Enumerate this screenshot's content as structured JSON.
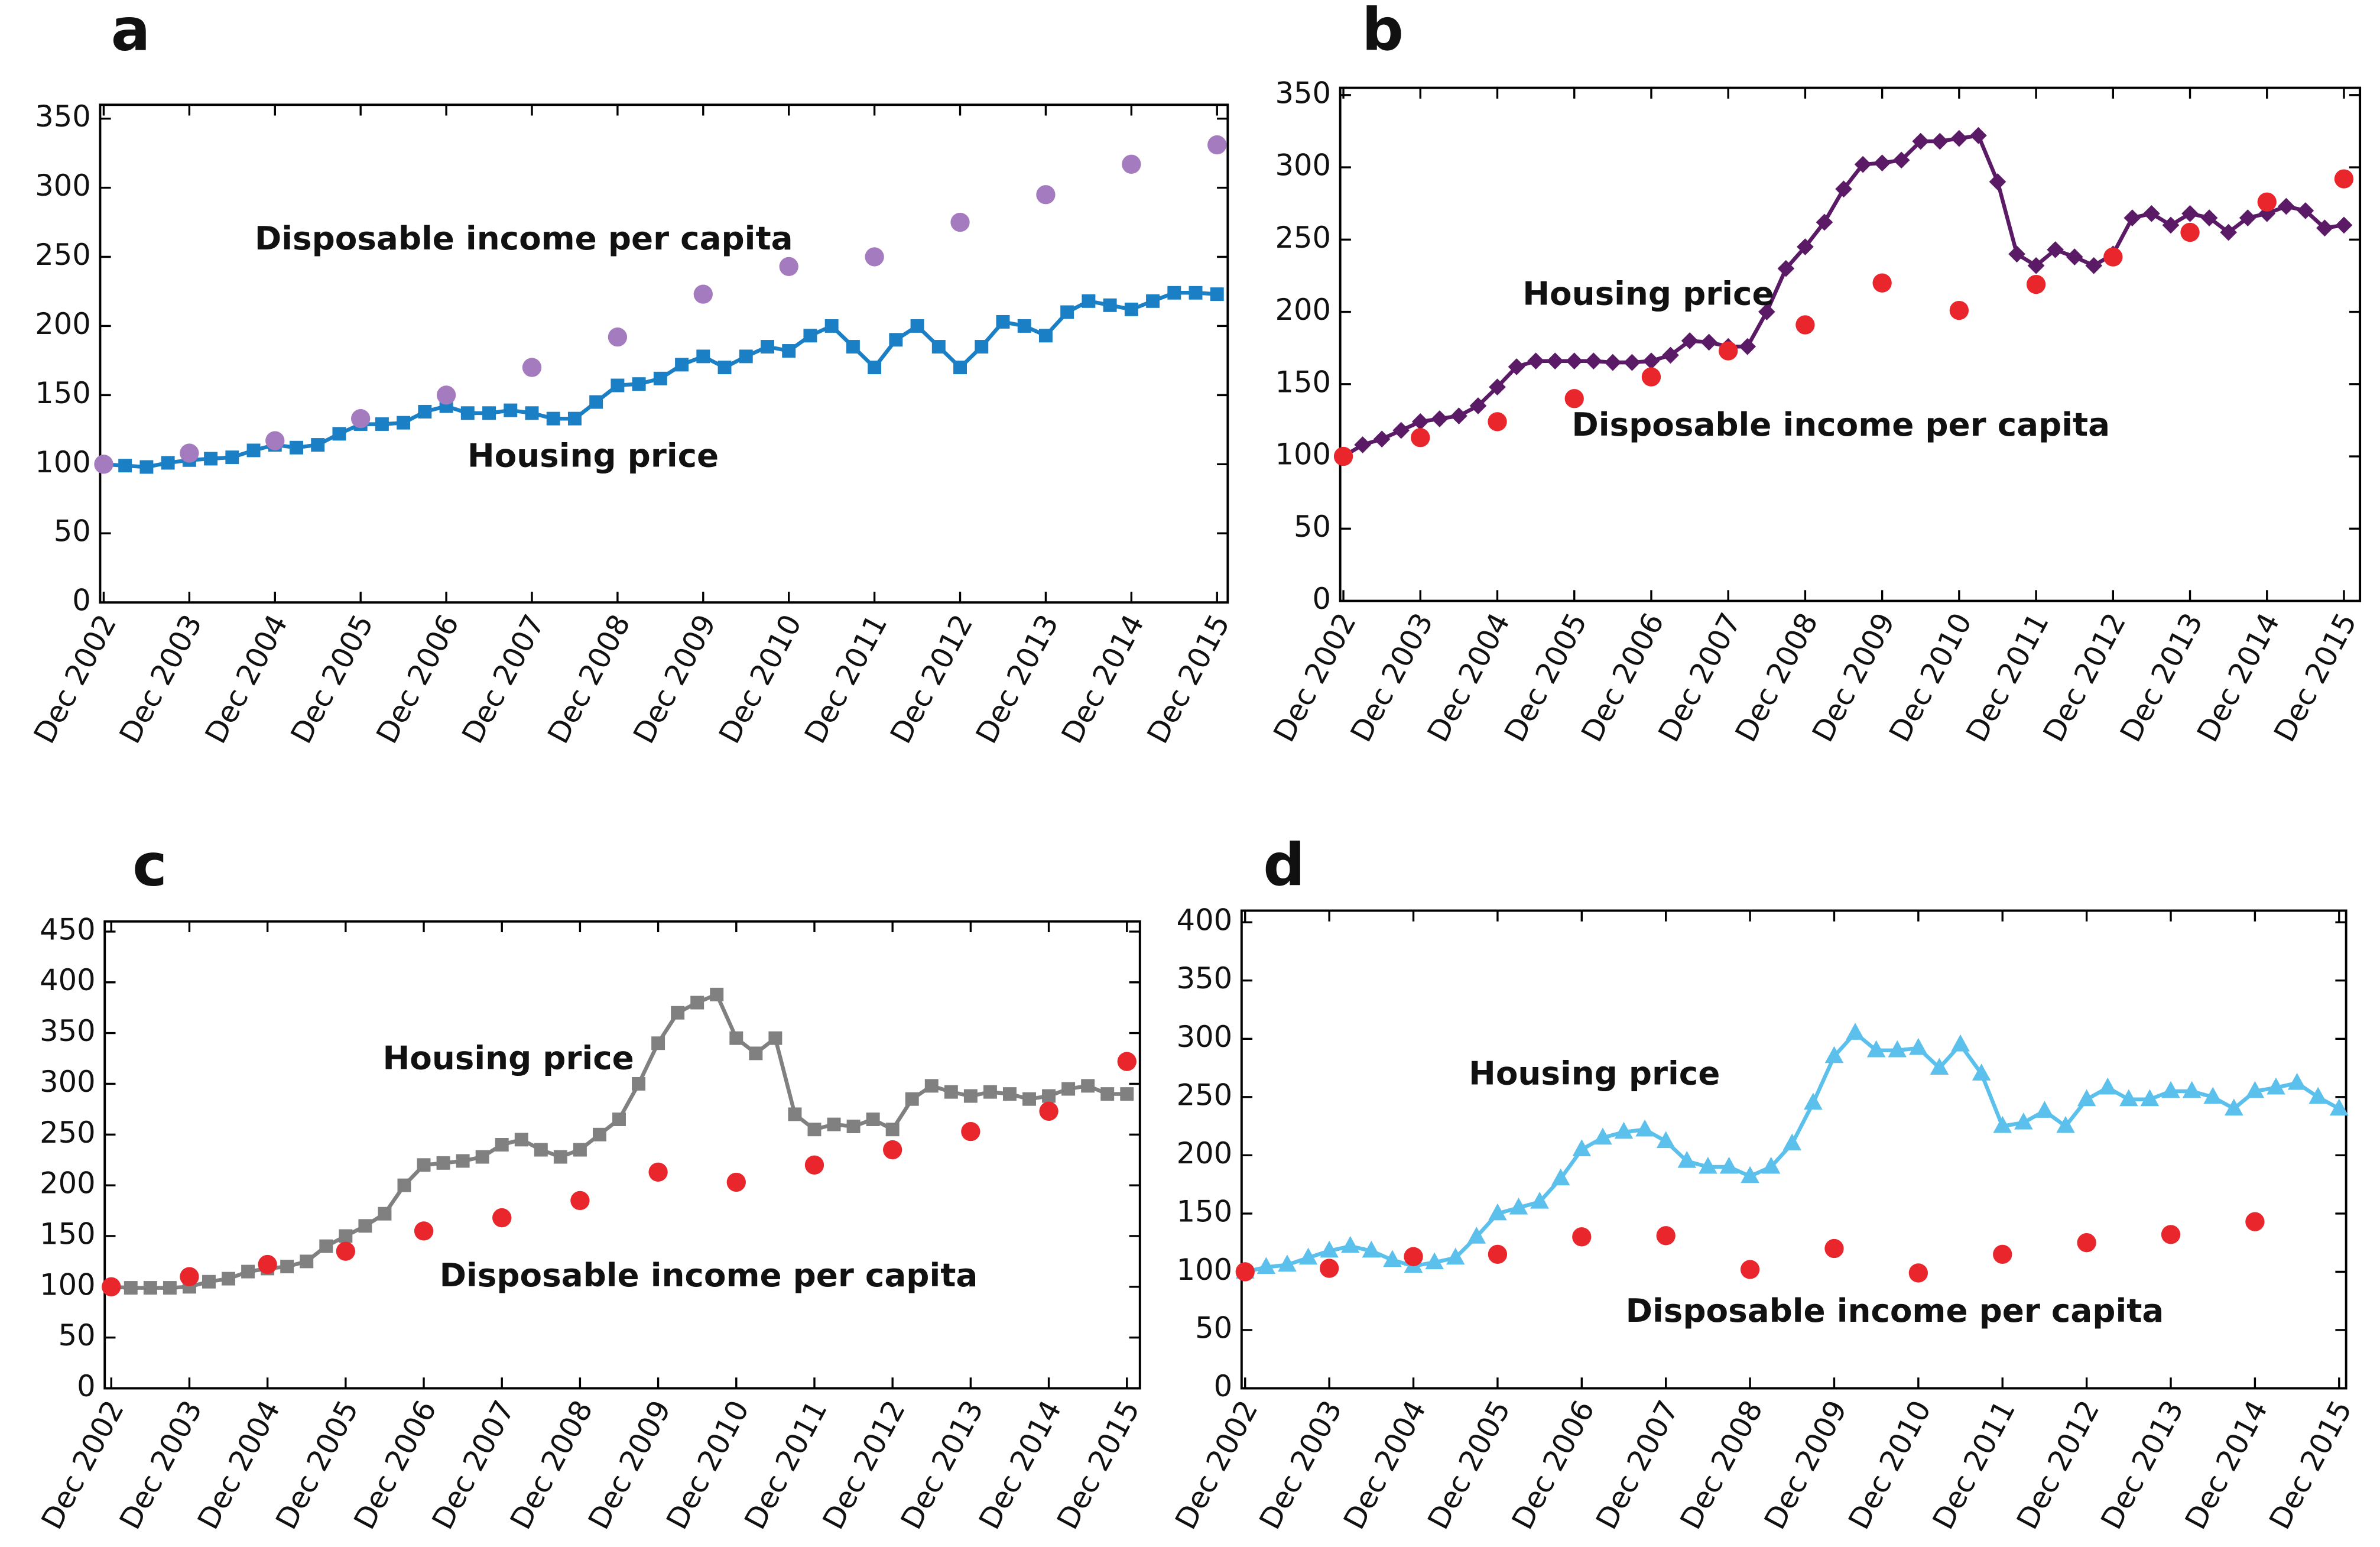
{
  "chart_data": [
    {
      "type": "line",
      "panel": "a",
      "xlim": [
        -0.5,
        157.5
      ],
      "ylim": [
        0,
        360
      ],
      "yticks": [
        0,
        50,
        100,
        150,
        200,
        250,
        300,
        350
      ],
      "xticks": [
        {
          "value": 0,
          "label": "Dec 2002"
        },
        {
          "value": 12,
          "label": "Dec 2003"
        },
        {
          "value": 24,
          "label": "Dec 2004"
        },
        {
          "value": 36,
          "label": "Dec 2005"
        },
        {
          "value": 48,
          "label": "Dec 2006"
        },
        {
          "value": 60,
          "label": "Dec 2007"
        },
        {
          "value": 72,
          "label": "Dec 2008"
        },
        {
          "value": 84,
          "label": "Dec 2009"
        },
        {
          "value": 96,
          "label": "Dec 2010"
        },
        {
          "value": 108,
          "label": "Dec 2011"
        },
        {
          "value": 120,
          "label": "Dec 2012"
        },
        {
          "value": 132,
          "label": "Dec 2013"
        },
        {
          "value": 144,
          "label": "Dec 2014"
        },
        {
          "value": 156,
          "label": "Dec 2015"
        }
      ],
      "series": [
        {
          "name": "Housing price",
          "color": "#1a7fc4",
          "marker": "square",
          "line": true,
          "x": [
            0,
            3,
            6,
            9,
            12,
            15,
            18,
            21,
            24,
            27,
            30,
            33,
            36,
            39,
            42,
            45,
            48,
            51,
            54,
            57,
            60,
            63,
            66,
            69,
            72,
            75,
            78,
            81,
            84,
            87,
            90,
            93,
            96,
            99,
            102,
            105,
            108,
            111,
            114,
            117,
            120,
            123,
            126,
            129,
            132,
            135,
            138,
            141,
            144,
            147,
            150,
            153,
            156
          ],
          "values": [
            100,
            99,
            98,
            101,
            103,
            104,
            105,
            110,
            114,
            112,
            114,
            122,
            129,
            129,
            130,
            138,
            142,
            137,
            137,
            139,
            137,
            133,
            133,
            145,
            157,
            158,
            162,
            172,
            178,
            170,
            178,
            185,
            182,
            193,
            200,
            185,
            170,
            190,
            200,
            185,
            170,
            185,
            203,
            200,
            193,
            210,
            218,
            215,
            212,
            218,
            224,
            224,
            223
          ]
        },
        {
          "name": "Disposable income per capita",
          "color": "#a57bbf",
          "marker": "circle",
          "line": false,
          "x": [
            0,
            12,
            24,
            36,
            48,
            60,
            72,
            84,
            96,
            108,
            120,
            132,
            144,
            156
          ],
          "values": [
            100,
            108,
            117,
            133,
            150,
            170,
            192,
            223,
            243,
            250,
            275,
            295,
            317,
            331
          ]
        }
      ]
    },
    {
      "type": "line",
      "panel": "b",
      "xlim": [
        -0.5,
        158.5
      ],
      "ylim": [
        0,
        355
      ],
      "yticks": [
        0,
        50,
        100,
        150,
        200,
        250,
        300,
        350
      ],
      "xticks": [
        {
          "value": 0,
          "label": "Dec 2002"
        },
        {
          "value": 12,
          "label": "Dec 2003"
        },
        {
          "value": 24,
          "label": "Dec 2004"
        },
        {
          "value": 36,
          "label": "Dec 2005"
        },
        {
          "value": 48,
          "label": "Dec 2006"
        },
        {
          "value": 60,
          "label": "Dec 2007"
        },
        {
          "value": 72,
          "label": "Dec 2008"
        },
        {
          "value": 84,
          "label": "Dec 2009"
        },
        {
          "value": 96,
          "label": "Dec 2010"
        },
        {
          "value": 108,
          "label": "Dec 2011"
        },
        {
          "value": 120,
          "label": "Dec 2012"
        },
        {
          "value": 132,
          "label": "Dec 2013"
        },
        {
          "value": 144,
          "label": "Dec 2014"
        },
        {
          "value": 156,
          "label": "Dec 2015"
        }
      ],
      "series": [
        {
          "name": "Housing price",
          "color": "#5b1a66",
          "marker": "diamond",
          "line": true,
          "x": [
            0,
            3,
            6,
            9,
            12,
            15,
            18,
            21,
            24,
            27,
            30,
            33,
            36,
            39,
            42,
            45,
            48,
            51,
            54,
            57,
            60,
            63,
            66,
            69,
            72,
            75,
            78,
            81,
            84,
            87,
            90,
            93,
            96,
            99,
            102,
            105,
            108,
            111,
            114,
            117,
            120,
            123,
            126,
            129,
            132,
            135,
            138,
            141,
            144,
            147,
            150,
            153,
            156
          ],
          "values": [
            100,
            108,
            112,
            118,
            124,
            126,
            128,
            135,
            148,
            162,
            166,
            166,
            166,
            166,
            165,
            165,
            166,
            170,
            180,
            179,
            176,
            176,
            200,
            230,
            245,
            262,
            285,
            302,
            303,
            305,
            318,
            318,
            320,
            322,
            290,
            240,
            232,
            243,
            238,
            232,
            240,
            265,
            268,
            260,
            268,
            265,
            255,
            265,
            268,
            273,
            270,
            258,
            260
          ]
        },
        {
          "name": "Disposable income per capita",
          "color": "#e8262b",
          "marker": "circle",
          "line": false,
          "x": [
            0,
            12,
            24,
            36,
            48,
            60,
            72,
            84,
            96,
            108,
            120,
            132,
            144,
            156
          ],
          "values": [
            100,
            113,
            124,
            140,
            155,
            173,
            191,
            220,
            201,
            219,
            238,
            255,
            276,
            292
          ]
        }
      ]
    },
    {
      "type": "line",
      "panel": "c",
      "xlim": [
        -1,
        158
      ],
      "ylim": [
        0,
        460
      ],
      "yticks": [
        0,
        50,
        100,
        150,
        200,
        250,
        300,
        350,
        400,
        450
      ],
      "xticks": [
        {
          "value": 0,
          "label": "Dec 2002"
        },
        {
          "value": 12,
          "label": "Dec 2003"
        },
        {
          "value": 24,
          "label": "Dec 2004"
        },
        {
          "value": 36,
          "label": "Dec 2005"
        },
        {
          "value": 48,
          "label": "Dec 2006"
        },
        {
          "value": 60,
          "label": "Dec 2007"
        },
        {
          "value": 72,
          "label": "Dec 2008"
        },
        {
          "value": 84,
          "label": "Dec 2009"
        },
        {
          "value": 96,
          "label": "Dec 2010"
        },
        {
          "value": 108,
          "label": "Dec 2011"
        },
        {
          "value": 120,
          "label": "Dec 2012"
        },
        {
          "value": 132,
          "label": "Dec 2013"
        },
        {
          "value": 144,
          "label": "Dec 2014"
        },
        {
          "value": 156,
          "label": "Dec 2015"
        }
      ],
      "series": [
        {
          "name": "Housing price",
          "color": "#808080",
          "marker": "square",
          "line": true,
          "x": [
            0,
            3,
            6,
            9,
            12,
            15,
            18,
            21,
            24,
            27,
            30,
            33,
            36,
            39,
            42,
            45,
            48,
            51,
            54,
            57,
            60,
            63,
            66,
            69,
            72,
            75,
            78,
            81,
            84,
            87,
            90,
            93,
            96,
            99,
            102,
            105,
            108,
            111,
            114,
            117,
            120,
            123,
            126,
            129,
            132,
            135,
            138,
            141,
            144,
            147,
            150,
            153,
            156
          ],
          "values": [
            100,
            99,
            99,
            99,
            100,
            105,
            108,
            115,
            118,
            120,
            125,
            140,
            150,
            160,
            172,
            200,
            220,
            222,
            224,
            228,
            240,
            245,
            235,
            228,
            235,
            250,
            265,
            300,
            340,
            370,
            380,
            388,
            345,
            330,
            345,
            270,
            255,
            260,
            258,
            265,
            255,
            285,
            298,
            292,
            288,
            292,
            290,
            285,
            288,
            295,
            298,
            290,
            290
          ]
        },
        {
          "name": "Disposable income per capita",
          "color": "#e8262b",
          "marker": "circle",
          "line": false,
          "x": [
            0,
            12,
            24,
            36,
            48,
            60,
            72,
            84,
            96,
            108,
            120,
            132,
            144,
            156
          ],
          "values": [
            100,
            110,
            122,
            135,
            155,
            168,
            185,
            213,
            203,
            220,
            235,
            253,
            273,
            322
          ]
        }
      ]
    },
    {
      "type": "line",
      "panel": "d",
      "xlim": [
        -0.5,
        157
      ],
      "ylim": [
        0,
        410
      ],
      "yticks": [
        0,
        50,
        100,
        150,
        200,
        250,
        300,
        350,
        400
      ],
      "xticks": [
        {
          "value": 0,
          "label": "Dec 2002"
        },
        {
          "value": 12,
          "label": "Dec 2003"
        },
        {
          "value": 24,
          "label": "Dec 2004"
        },
        {
          "value": 36,
          "label": "Dec 2005"
        },
        {
          "value": 48,
          "label": "Dec 2006"
        },
        {
          "value": 60,
          "label": "Dec 2007"
        },
        {
          "value": 72,
          "label": "Dec 2008"
        },
        {
          "value": 84,
          "label": "Dec 2009"
        },
        {
          "value": 96,
          "label": "Dec 2010"
        },
        {
          "value": 108,
          "label": "Dec 2011"
        },
        {
          "value": 120,
          "label": "Dec 2012"
        },
        {
          "value": 132,
          "label": "Dec 2013"
        },
        {
          "value": 144,
          "label": "Dec 2014"
        },
        {
          "value": 156,
          "label": "Dec 2015"
        }
      ],
      "series": [
        {
          "name": "Housing price",
          "color": "#5bc0eb",
          "marker": "triangle",
          "line": true,
          "x": [
            0,
            3,
            6,
            9,
            12,
            15,
            18,
            21,
            24,
            27,
            30,
            33,
            36,
            39,
            42,
            45,
            48,
            51,
            54,
            57,
            60,
            63,
            66,
            69,
            72,
            75,
            78,
            81,
            84,
            87,
            90,
            93,
            96,
            99,
            102,
            105,
            108,
            111,
            114,
            117,
            120,
            123,
            126,
            129,
            132,
            135,
            138,
            141,
            144,
            147,
            150,
            153,
            156
          ],
          "values": [
            100,
            104,
            106,
            112,
            118,
            122,
            118,
            110,
            105,
            108,
            112,
            130,
            150,
            155,
            160,
            180,
            205,
            215,
            220,
            222,
            212,
            195,
            190,
            190,
            182,
            190,
            210,
            245,
            285,
            305,
            290,
            290,
            292,
            275,
            295,
            270,
            225,
            228,
            238,
            225,
            248,
            258,
            248,
            248,
            255,
            255,
            250,
            240,
            255,
            258,
            262,
            250,
            240
          ]
        },
        {
          "name": "Disposable income per capita",
          "color": "#e8262b",
          "marker": "circle",
          "line": false,
          "x": [
            0,
            12,
            24,
            36,
            48,
            60,
            72,
            84,
            96,
            108,
            120,
            132,
            144
          ],
          "values": [
            100,
            103,
            113,
            115,
            130,
            131,
            102,
            120,
            99,
            115,
            125,
            132,
            143
          ]
        }
      ]
    }
  ]
}
